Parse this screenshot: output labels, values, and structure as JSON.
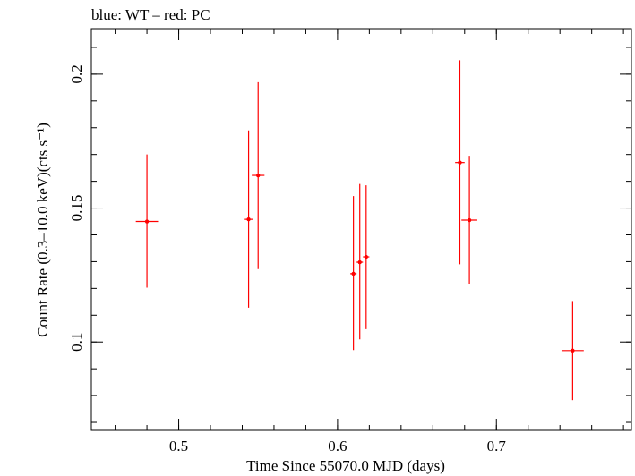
{
  "chart_data": {
    "type": "scatter",
    "title": "blue: WT – red: PC",
    "xlabel": "Time Since 55070.0 MJD (days)",
    "ylabel": "Count Rate (0.3–10.0 keV)(cts s⁻¹)",
    "xlim": [
      0.445,
      0.785
    ],
    "ylim": [
      0.067,
      0.217
    ],
    "xticks": [
      0.5,
      0.6,
      0.7
    ],
    "xtick_labels": [
      "0.5",
      "0.6",
      "0.7"
    ],
    "yticks": [
      0.1,
      0.15,
      0.2
    ],
    "ytick_labels": [
      "0.1",
      "0.15",
      "0.2"
    ],
    "grid": false,
    "series": [
      {
        "name": "PC",
        "color": "#ff0000",
        "points": [
          {
            "x": 0.48,
            "y": 0.145,
            "xerr": 0.007,
            "ylo": 0.1203,
            "yhi": 0.17
          },
          {
            "x": 0.544,
            "y": 0.1458,
            "xerr": 0.003,
            "ylo": 0.1128,
            "yhi": 0.179
          },
          {
            "x": 0.55,
            "y": 0.1622,
            "xerr": 0.004,
            "ylo": 0.1272,
            "yhi": 0.197
          },
          {
            "x": 0.61,
            "y": 0.1255,
            "xerr": 0.002,
            "ylo": 0.097,
            "yhi": 0.1545
          },
          {
            "x": 0.614,
            "y": 0.1298,
            "xerr": 0.002,
            "ylo": 0.101,
            "yhi": 0.159
          },
          {
            "x": 0.618,
            "y": 0.1318,
            "xerr": 0.002,
            "ylo": 0.1048,
            "yhi": 0.1585
          },
          {
            "x": 0.677,
            "y": 0.167,
            "xerr": 0.003,
            "ylo": 0.129,
            "yhi": 0.2052
          },
          {
            "x": 0.683,
            "y": 0.1455,
            "xerr": 0.005,
            "ylo": 0.1218,
            "yhi": 0.1695
          },
          {
            "x": 0.748,
            "y": 0.0968,
            "xerr": 0.007,
            "ylo": 0.0783,
            "yhi": 0.1153
          }
        ]
      }
    ]
  }
}
